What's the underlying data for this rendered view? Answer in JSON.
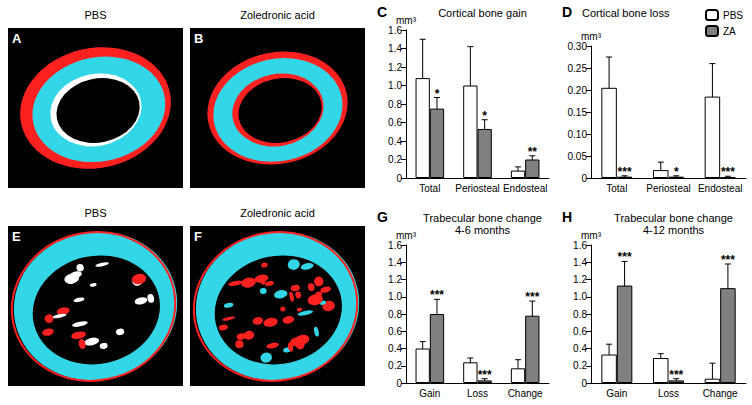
{
  "images": [
    {
      "panel": "A",
      "title": "PBS"
    },
    {
      "panel": "B",
      "title": "Zoledronic acid"
    },
    {
      "panel": "E",
      "title": "PBS"
    },
    {
      "panel": "F",
      "title": "Zoledronic acid"
    }
  ],
  "chart_data": [
    {
      "type": "bar",
      "panel": "C",
      "title": "Cortical bone gain",
      "y_label": "mm³",
      "categories": [
        "Total",
        "Periosteal",
        "Endosteal"
      ],
      "series": [
        {
          "name": "PBS",
          "color": "#ffffff",
          "values": [
            1.08,
            1.0,
            0.08
          ],
          "errors": [
            0.42,
            0.42,
            0.04
          ]
        },
        {
          "name": "ZA",
          "color": "#808080",
          "values": [
            0.75,
            0.53,
            0.2
          ],
          "errors": [
            0.12,
            0.1,
            0.04
          ],
          "annotations": [
            "*",
            "*",
            "**"
          ]
        }
      ],
      "ylim": [
        0,
        1.6
      ],
      "yticks": [
        0,
        0.2,
        0.4,
        0.6,
        0.8,
        {
          "value": 1,
          "label": "1.0"
        },
        1.2,
        1.4,
        1.6
      ],
      "grid": false
    },
    {
      "type": "bar",
      "panel": "D",
      "title": "Cortical bone loss",
      "y_label": "mm³",
      "categories": [
        "Total",
        "Periosteal",
        "Endosteal"
      ],
      "series": [
        {
          "name": "PBS",
          "color": "#ffffff",
          "values": [
            0.205,
            0.018,
            0.185
          ],
          "errors": [
            0.07,
            0.018,
            0.075
          ]
        },
        {
          "name": "ZA",
          "color": "#808080",
          "values": [
            0.003,
            0.003,
            0.002
          ],
          "errors": [
            0.002,
            0.002,
            0.002
          ],
          "annotations": [
            "***",
            "*",
            "***"
          ]
        }
      ],
      "ylim": [
        0,
        0.3
      ],
      "yticks": [
        0,
        0.05,
        {
          "value": 0.1,
          "label": "0.10"
        },
        0.15,
        {
          "value": 0.2,
          "label": "0.20"
        },
        0.25,
        {
          "value": 0.3,
          "label": "0.30"
        }
      ],
      "grid": false,
      "legend": "top-right"
    },
    {
      "type": "bar",
      "panel": "G",
      "title": "Trabecular bone change",
      "subtitle": "4-6 months",
      "y_label": "mm³",
      "categories": [
        "Gain",
        "Loss",
        "Change"
      ],
      "series": [
        {
          "name": "PBS",
          "color": "#ffffff",
          "values": [
            0.4,
            0.24,
            0.17
          ],
          "errors": [
            0.08,
            0.05,
            0.1
          ]
        },
        {
          "name": "ZA",
          "color": "#808080",
          "values": [
            0.8,
            0.03,
            0.78
          ],
          "errors": [
            0.17,
            0.02,
            0.17
          ],
          "annotations": [
            "***",
            "***",
            "***"
          ]
        }
      ],
      "ylim": [
        0,
        1.6
      ],
      "yticks": [
        0,
        0.2,
        0.4,
        0.6,
        0.8,
        {
          "value": 1,
          "label": "1.0"
        },
        1.2,
        1.4,
        1.6
      ],
      "grid": false
    },
    {
      "type": "bar",
      "panel": "H",
      "title": "Trabecular bone change",
      "subtitle": "4-12 months",
      "y_label": "mm³",
      "categories": [
        "Gain",
        "Loss",
        "Change"
      ],
      "series": [
        {
          "name": "PBS",
          "color": "#ffffff",
          "values": [
            0.33,
            0.29,
            0.05
          ],
          "errors": [
            0.12,
            0.05,
            0.18
          ]
        },
        {
          "name": "ZA",
          "color": "#808080",
          "values": [
            1.13,
            0.03,
            1.1
          ],
          "errors": [
            0.28,
            0.02,
            0.28
          ],
          "annotations": [
            "***",
            "***",
            "***"
          ]
        }
      ],
      "ylim": [
        0,
        1.6
      ],
      "yticks": [
        0,
        0.2,
        0.4,
        0.6,
        0.8,
        {
          "value": 1,
          "label": "1.0"
        },
        1.2,
        1.4,
        1.6
      ],
      "grid": false
    }
  ]
}
